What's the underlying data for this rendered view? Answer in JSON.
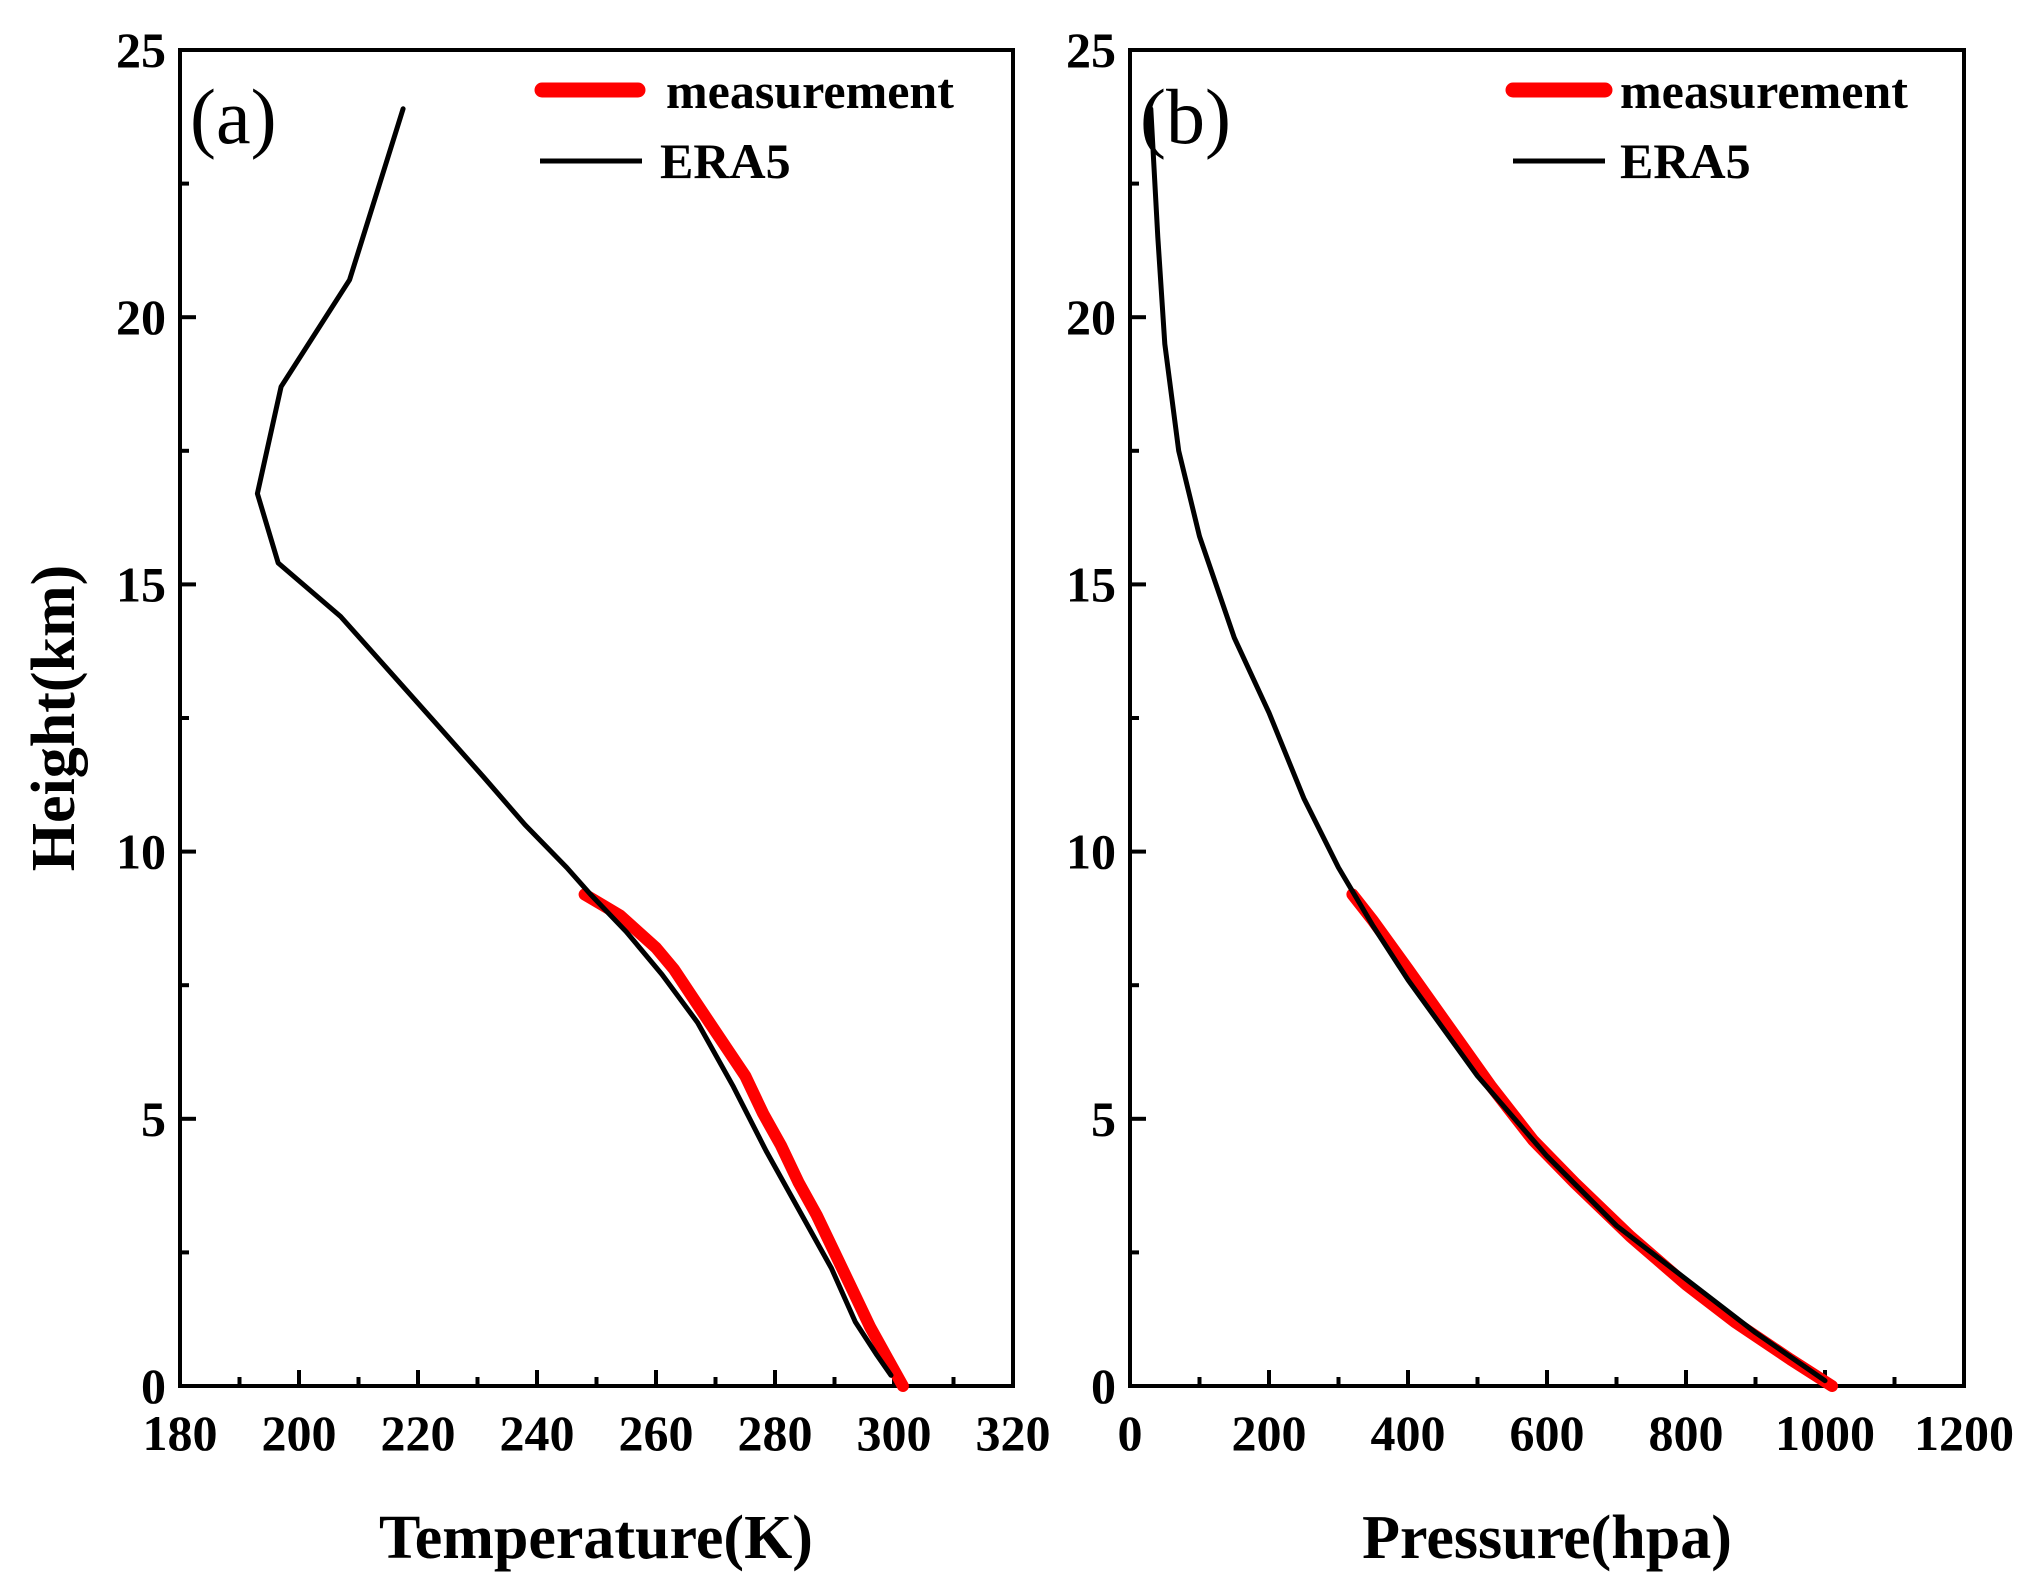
{
  "chart_data": [
    {
      "type": "line",
      "panel_label": "(a)",
      "xlabel": "Temperature(K)",
      "ylabel": "Height(km)",
      "xlim": [
        180,
        320
      ],
      "ylim": [
        0,
        25
      ],
      "xticks": [
        "180",
        "200",
        "220",
        "240",
        "260",
        "280",
        "300",
        "320"
      ],
      "yticks": [
        "0",
        "5",
        "10",
        "15",
        "20",
        "25"
      ],
      "grid": false,
      "legend_position": "top-right",
      "series": [
        {
          "name": "measurement",
          "color": "#ff0000",
          "x": [
            301.5,
            299,
            296,
            293,
            290,
            287,
            284,
            281,
            278,
            275,
            272,
            269,
            266,
            263,
            260,
            257,
            254,
            251,
            248
          ],
          "y": [
            0.0,
            0.5,
            1.1,
            1.8,
            2.5,
            3.2,
            3.8,
            4.5,
            5.1,
            5.8,
            6.3,
            6.8,
            7.3,
            7.8,
            8.2,
            8.5,
            8.8,
            9.0,
            9.2
          ]
        },
        {
          "name": "ERA5",
          "color": "#000000",
          "x": [
            299.5,
            297,
            293.5,
            289.5,
            284,
            278.5,
            273,
            267,
            261,
            255,
            249,
            245,
            238,
            231,
            223,
            215,
            207,
            196.5,
            193,
            197,
            208.5,
            217.5
          ],
          "y": [
            0.2,
            0.6,
            1.2,
            2.2,
            3.3,
            4.4,
            5.6,
            6.8,
            7.7,
            8.5,
            9.2,
            9.7,
            10.5,
            11.4,
            12.4,
            13.4,
            14.4,
            15.4,
            16.7,
            18.7,
            20.7,
            23.9
          ]
        }
      ]
    },
    {
      "type": "line",
      "panel_label": "(b)",
      "xlabel": "Pressure(hpa)",
      "ylabel": "",
      "xlim": [
        0,
        1200
      ],
      "ylim": [
        0,
        25
      ],
      "xticks": [
        "0",
        "200",
        "400",
        "600",
        "800",
        "1000",
        "1200"
      ],
      "yticks": [
        "0",
        "5",
        "10",
        "15",
        "20",
        "25"
      ],
      "grid": false,
      "legend_position": "top-right",
      "series": [
        {
          "name": "measurement",
          "color": "#ff0000",
          "x": [
            1010,
            950,
            870,
            800,
            720,
            640,
            580,
            520,
            460,
            400,
            350,
            320
          ],
          "y": [
            0.0,
            0.5,
            1.2,
            1.9,
            2.8,
            3.8,
            4.6,
            5.6,
            6.7,
            7.8,
            8.7,
            9.2
          ]
        },
        {
          "name": "ERA5",
          "color": "#000000",
          "x": [
            1000,
            900,
            800,
            700,
            600,
            500,
            400,
            350,
            300,
            250,
            200,
            150,
            100,
            70,
            50,
            40,
            30
          ],
          "y": [
            0.1,
            1.0,
            2.0,
            3.0,
            4.3,
            5.8,
            7.6,
            8.6,
            9.7,
            11.0,
            12.6,
            14.0,
            15.9,
            17.5,
            19.5,
            21.5,
            23.9
          ]
        }
      ]
    }
  ]
}
